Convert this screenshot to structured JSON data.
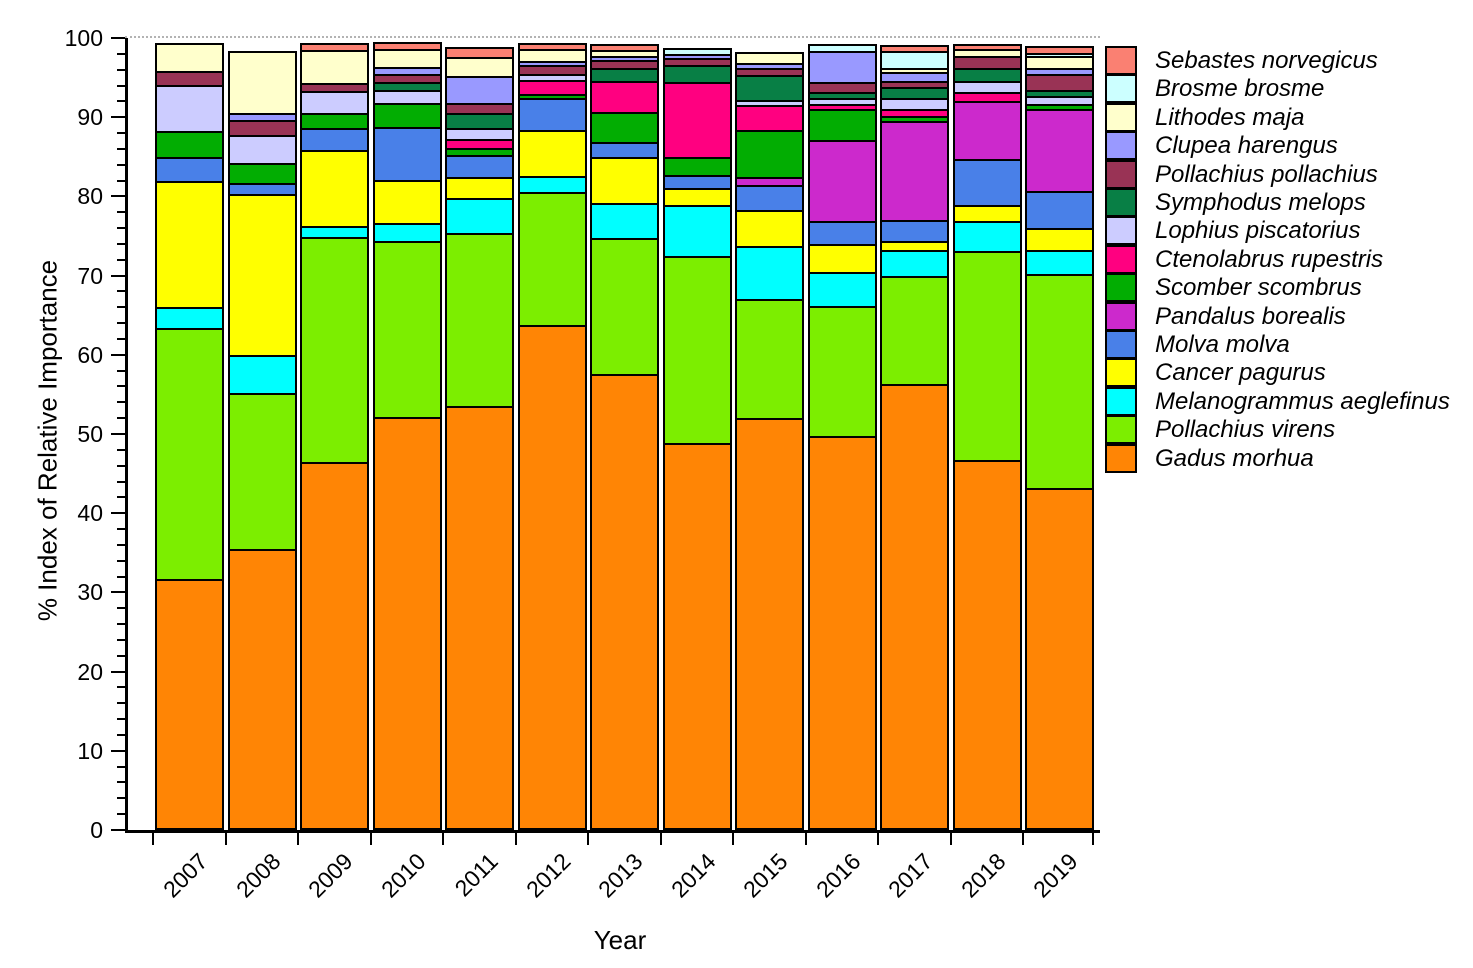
{
  "chart_data": {
    "type": "bar",
    "subtype": "stacked-vertical",
    "title": "",
    "xlabel": "Year",
    "ylabel": "% Index of Relative Importance",
    "ylim": [
      0,
      100
    ],
    "y_major_ticks": [
      0,
      10,
      20,
      30,
      40,
      50,
      60,
      70,
      80,
      90,
      100
    ],
    "y_minor_step": 2,
    "grid": "dotted line at y=100 only",
    "legend_position": "right",
    "categories": [
      "2007",
      "2008",
      "2009",
      "2010",
      "2011",
      "2012",
      "2013",
      "2014",
      "2015",
      "2016",
      "2017",
      "2018",
      "2019"
    ],
    "series": [
      {
        "name": "Sebastes norvegicus",
        "color": "#FA8072",
        "values": [
          0,
          0,
          0.7,
          0.6,
          1.1,
          0.5,
          0.6,
          0,
          0,
          0,
          0.5,
          0.5,
          0.6
        ]
      },
      {
        "name": "Brosme brosme",
        "color": "#CCFFFF",
        "values": [
          0,
          0,
          0,
          0,
          0,
          0,
          0,
          0.6,
          0,
          0.6,
          2.2,
          0,
          0.4
        ]
      },
      {
        "name": "Lithodes maja",
        "color": "#FFFFCC",
        "values": [
          3.3,
          7.7,
          4.2,
          2.3,
          2.3,
          1.5,
          0.7,
          0,
          1.1,
          0,
          0.4,
          0.8,
          1.6
        ]
      },
      {
        "name": "Clupea harengus",
        "color": "#9999FF",
        "values": [
          0,
          0.8,
          0,
          0.9,
          3.5,
          0.6,
          0.5,
          0.5,
          0.6,
          3.9,
          1.2,
          0,
          0.7
        ]
      },
      {
        "name": "Pollachius pollachius",
        "color": "#993355",
        "values": [
          1.8,
          1.9,
          1.0,
          1.0,
          1.2,
          1.1,
          1.1,
          0.9,
          0.9,
          1.3,
          0.7,
          1.5,
          2.1
        ]
      },
      {
        "name": "Symphodus melops",
        "color": "#087F45",
        "values": [
          0,
          0,
          0,
          1.1,
          2.0,
          0,
          1.6,
          2.1,
          3.2,
          0.8,
          1.5,
          1.7,
          0.7
        ]
      },
      {
        "name": "Lophius piscatorius",
        "color": "#CCCCFF",
        "values": [
          5.8,
          3.6,
          2.8,
          1.6,
          1.3,
          0.8,
          0,
          0,
          0.7,
          0.7,
          1.4,
          1.4,
          1.0
        ]
      },
      {
        "name": "Ctenolabrus rupestris",
        "color": "#FF0080",
        "values": [
          0,
          0,
          0,
          0,
          1.2,
          1.7,
          3.9,
          9.5,
          3.1,
          0.7,
          0.8,
          1.1,
          0
        ]
      },
      {
        "name": "Scomber scombrus",
        "color": "#02AD02",
        "values": [
          3.4,
          2.5,
          1.9,
          3.0,
          0.9,
          0.6,
          3.8,
          2.3,
          6.0,
          3.9,
          0.7,
          0,
          0.6
        ]
      },
      {
        "name": "Pandalus borealis",
        "color": "#CC29CC",
        "values": [
          0,
          0,
          0,
          0,
          0,
          0,
          0,
          0,
          1.0,
          10.3,
          12.5,
          7.4,
          10.4
        ]
      },
      {
        "name": "Molva molva",
        "color": "#4980E8",
        "values": [
          3.0,
          1.4,
          2.7,
          6.7,
          2.8,
          4.0,
          1.9,
          1.7,
          3.1,
          2.9,
          2.7,
          5.8,
          4.7
        ]
      },
      {
        "name": "Cancer pagurus",
        "color": "#FFFF00",
        "values": [
          16.0,
          20.5,
          9.7,
          5.5,
          2.7,
          5.9,
          5.9,
          2.1,
          4.6,
          3.5,
          1.1,
          2.1,
          2.8
        ]
      },
      {
        "name": "Melanogrammus aeglefinus",
        "color": "#00FFFF",
        "values": [
          2.7,
          4.8,
          1.4,
          2.3,
          4.4,
          2.0,
          4.4,
          6.5,
          6.8,
          4.4,
          3.3,
          3.8,
          3.1
        ]
      },
      {
        "name": "Pollachius virens",
        "color": "#7CEE00",
        "values": [
          31.8,
          19.8,
          28.5,
          22.4,
          22.0,
          16.9,
          17.3,
          23.7,
          15.1,
          16.5,
          13.7,
          26.5,
          27.2
        ]
      },
      {
        "name": "Gadus morhua",
        "color": "#FF8505",
        "values": [
          31.6,
          35.4,
          46.5,
          52.1,
          53.5,
          63.8,
          57.6,
          48.9,
          52.0,
          49.7,
          56.4,
          46.7,
          43.1
        ]
      }
    ],
    "bar_totals": [
      99.4,
      98.4,
      99.4,
      99.5,
      98.9,
      99.4,
      99.3,
      98.8,
      98.2,
      99.2,
      99.1,
      99.3,
      99.0
    ]
  },
  "axis_labels": {
    "x": "Year",
    "y": "% Index of Relative Importance"
  }
}
